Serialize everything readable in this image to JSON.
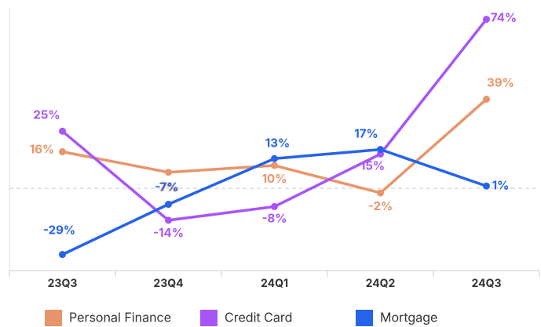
{
  "chart_data": {
    "type": "line",
    "categories": [
      "23Q3",
      "23Q4",
      "24Q1",
      "24Q2",
      "24Q3"
    ],
    "series": [
      {
        "name": "Personal Finance",
        "color": "#e8956b",
        "values": [
          16,
          7,
          10,
          -2,
          39
        ],
        "value_labels": [
          "16%",
          "7%",
          "10%",
          "-2%",
          "39%"
        ]
      },
      {
        "name": "Credit Card",
        "color": "#a855f7",
        "values": [
          25,
          -14,
          -8,
          15,
          74
        ],
        "value_labels": [
          "25%",
          "-14%",
          "-8%",
          "15%",
          "74%"
        ]
      },
      {
        "name": "Mortgage",
        "color": "#2563eb",
        "values": [
          -29,
          -7,
          13,
          17,
          1
        ],
        "value_labels": [
          "-29%",
          "-7%",
          "13%",
          "17%",
          "1%"
        ]
      }
    ],
    "ylim": [
      -36,
      79
    ],
    "zero_line": true,
    "legend": "bottom"
  }
}
